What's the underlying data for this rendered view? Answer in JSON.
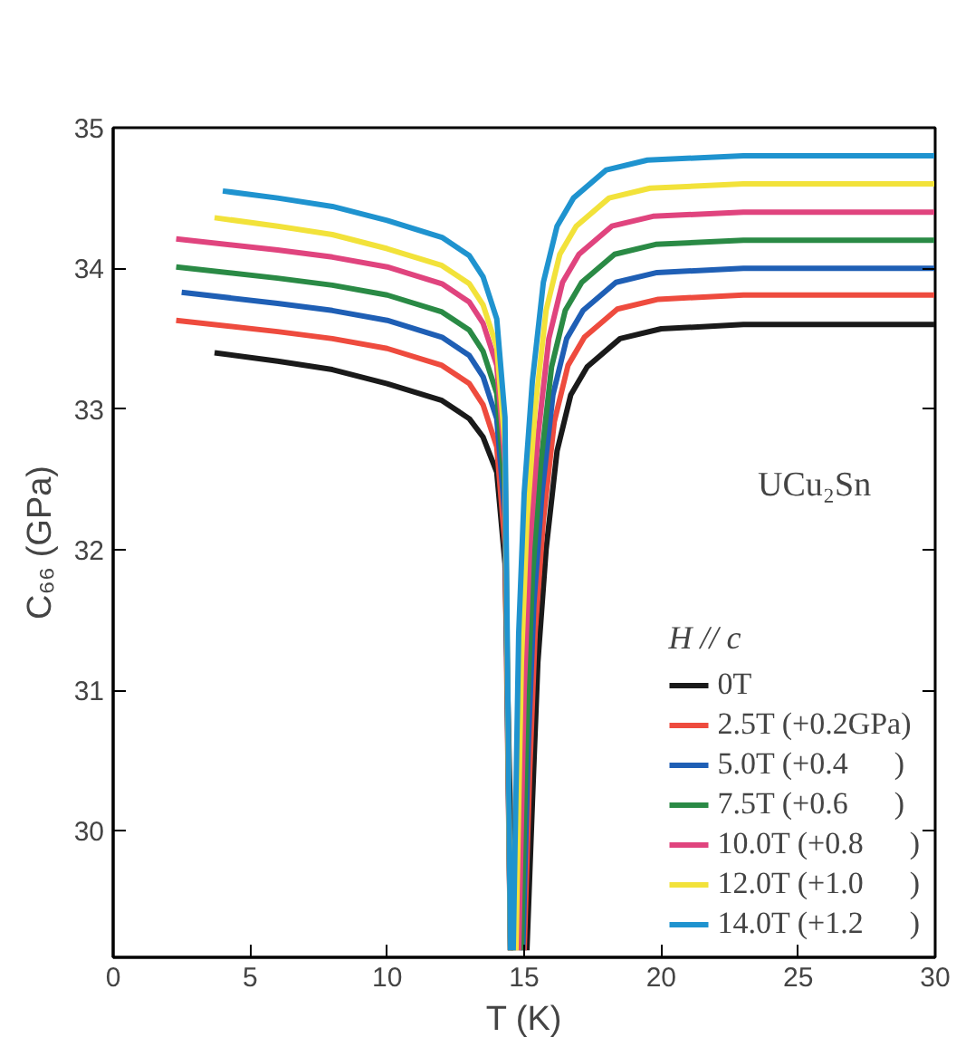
{
  "chart_data": {
    "type": "line",
    "xlabel": "T (K)",
    "ylabel": "C₆₆ (GPa)",
    "legend_title": "H // c",
    "annotations": [
      "UCu₂Sn"
    ],
    "xlim": [
      0,
      30
    ],
    "ylim": [
      29.1,
      35
    ],
    "xticks": [
      0,
      5,
      10,
      15,
      20,
      25,
      30
    ],
    "yticks": [
      30,
      31,
      32,
      33,
      34,
      35
    ],
    "grid": false,
    "legend": "bottom right",
    "line_style": "solid",
    "series": [
      {
        "name": "0T",
        "color": "#1a1a1a",
        "x": [
          3.7,
          6,
          8,
          10,
          12,
          13,
          13.5,
          14,
          14.3,
          14.6,
          14.85,
          15.1,
          15.3,
          15.5,
          15.8,
          16.2,
          16.7,
          17.3,
          18.5,
          20,
          23,
          30
        ],
        "values": [
          33.4,
          33.34,
          33.28,
          33.18,
          33.06,
          32.93,
          32.8,
          32.55,
          31.9,
          29.15,
          null,
          29.15,
          30.2,
          31.2,
          32.0,
          32.7,
          33.1,
          33.3,
          33.5,
          33.57,
          33.6,
          33.6
        ]
      },
      {
        "name": "2.5T (+0.2GPa)",
        "color": "#ee4b3e",
        "x": [
          2.3,
          6,
          8,
          10,
          12,
          13,
          13.5,
          14,
          14.3,
          14.5,
          14.75,
          15.0,
          15.2,
          15.4,
          15.7,
          16.1,
          16.6,
          17.2,
          18.4,
          19.9,
          23,
          30
        ],
        "values": [
          33.63,
          33.55,
          33.5,
          33.43,
          33.31,
          33.18,
          33.03,
          32.73,
          32.03,
          29.15,
          null,
          29.15,
          30.41,
          31.41,
          32.21,
          32.91,
          33.31,
          33.51,
          33.71,
          33.78,
          33.81,
          33.81
        ]
      },
      {
        "name": "5.0T (+0.4      )",
        "color": "#1f5fb5",
        "x": [
          2.5,
          6,
          8,
          10,
          12,
          13,
          13.5,
          14,
          14.3,
          14.5,
          14.7,
          14.95,
          15.15,
          15.35,
          15.65,
          16.05,
          16.55,
          17.15,
          18.35,
          19.85,
          23,
          30
        ],
        "values": [
          33.83,
          33.75,
          33.7,
          33.63,
          33.51,
          33.38,
          33.23,
          32.93,
          32.23,
          29.15,
          null,
          29.15,
          30.6,
          31.6,
          32.4,
          33.1,
          33.5,
          33.7,
          33.9,
          33.97,
          34.0,
          34.0
        ]
      },
      {
        "name": "7.5T (+0.6      )",
        "color": "#2a8a45",
        "x": [
          2.3,
          6,
          8,
          10,
          12,
          13,
          13.5,
          14,
          14.3,
          14.5,
          14.7,
          14.9,
          15.1,
          15.3,
          15.6,
          16.0,
          16.5,
          17.1,
          18.3,
          19.8,
          23,
          30
        ],
        "values": [
          34.01,
          33.93,
          33.88,
          33.81,
          33.69,
          33.56,
          33.41,
          33.11,
          32.41,
          29.15,
          null,
          29.15,
          30.8,
          31.8,
          32.6,
          33.3,
          33.7,
          33.9,
          34.1,
          34.17,
          34.2,
          34.2
        ]
      },
      {
        "name": "10.0T (+0.8      )",
        "color": "#e0447e",
        "x": [
          2.3,
          6,
          8,
          10,
          12,
          13,
          13.5,
          14,
          14.3,
          14.5,
          14.65,
          14.8,
          15.0,
          15.2,
          15.5,
          15.9,
          16.4,
          17.0,
          18.2,
          19.7,
          23,
          30
        ],
        "values": [
          34.21,
          34.13,
          34.08,
          34.01,
          33.89,
          33.76,
          33.61,
          33.31,
          32.61,
          29.15,
          null,
          29.15,
          31.0,
          32.0,
          32.8,
          33.5,
          33.9,
          34.1,
          34.3,
          34.37,
          34.4,
          34.4
        ]
      },
      {
        "name": "12.0T (+1.0      )",
        "color": "#f2e23a",
        "x": [
          3.7,
          6,
          8,
          10,
          12,
          13,
          13.5,
          14,
          14.3,
          14.5,
          14.6,
          14.7,
          14.9,
          15.1,
          15.4,
          15.8,
          16.3,
          16.9,
          18.1,
          19.6,
          23,
          30
        ],
        "values": [
          34.36,
          34.3,
          34.24,
          34.14,
          34.02,
          33.89,
          33.74,
          33.44,
          32.74,
          29.15,
          null,
          29.15,
          31.2,
          32.2,
          33.0,
          33.7,
          34.1,
          34.3,
          34.5,
          34.57,
          34.6,
          34.6
        ]
      },
      {
        "name": "14.0T (+1.2      )",
        "color": "#1f93cf",
        "x": [
          4.0,
          6,
          8,
          10,
          12,
          13,
          13.5,
          14,
          14.3,
          14.5,
          14.55,
          14.6,
          14.8,
          15.0,
          15.3,
          15.7,
          16.2,
          16.8,
          18.0,
          19.5,
          23,
          30
        ],
        "values": [
          34.55,
          34.5,
          34.44,
          34.34,
          34.22,
          34.09,
          33.94,
          33.64,
          32.94,
          29.15,
          null,
          29.15,
          31.4,
          32.4,
          33.2,
          33.9,
          34.3,
          34.5,
          34.7,
          34.77,
          34.8,
          34.8
        ]
      }
    ]
  }
}
